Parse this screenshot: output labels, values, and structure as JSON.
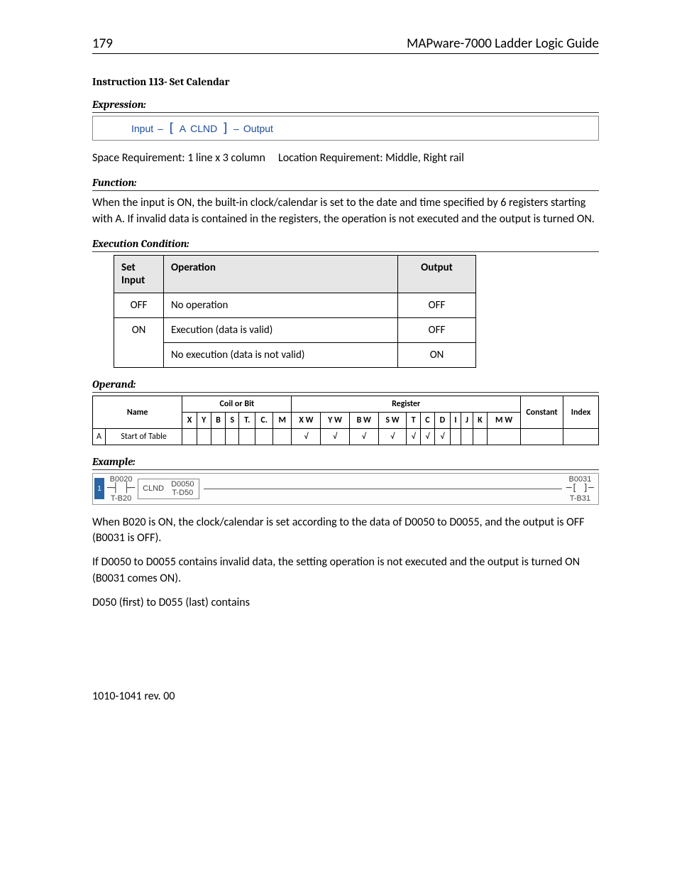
{
  "header": {
    "page_num": "179",
    "doc_title": "MAPware-7000 Ladder Logic Guide"
  },
  "title": "Instruction 113- Set Calendar",
  "expression": {
    "label": "Expression:",
    "input": "Input",
    "a": "A",
    "mnemonic": "CLND",
    "output": "Output"
  },
  "space_req": "Space Requirement: 1 line x 3 column",
  "loc_req": "Location Requirement: Middle, Right rail",
  "function": {
    "label": "Function:",
    "text": "When the input is ON, the built-in clock/calendar is set to the date and time specified by 6 registers starting with A. If invalid data is contained in the registers, the operation is not executed and the output is turned ON."
  },
  "exec": {
    "label": "Execution Condition:",
    "headers": {
      "set": "Set Input",
      "op": "Operation",
      "out": "Output"
    },
    "rows": [
      {
        "set": "OFF",
        "op": "No operation",
        "out": "OFF"
      },
      {
        "set": "ON",
        "op": "Execution (data is valid)",
        "out": "OFF"
      },
      {
        "set": "",
        "op": "No execution (data is not valid)",
        "out": "ON"
      }
    ]
  },
  "operand": {
    "label": "Operand:",
    "group_headers": {
      "coil": "Coil or Bit",
      "reg": "Register",
      "const": "Constant",
      "index": "Index"
    },
    "name_header": "Name",
    "cols_coil": [
      "X",
      "Y",
      "B",
      "S",
      "T.",
      "C.",
      "M"
    ],
    "cols_reg": [
      "X W",
      "Y W",
      "B W",
      "S W",
      "T",
      "C",
      "D",
      "I",
      "J",
      "K",
      "M W"
    ],
    "row": {
      "idx": "A",
      "name": "Start of Table",
      "marks": {
        "XW": "√",
        "YW": "√",
        "BW": "√",
        "SW": "√",
        "T": "√",
        "C": "√",
        "D": "√"
      }
    }
  },
  "example": {
    "label": "Example:",
    "rung": "1",
    "contact_addr": "B0020",
    "contact_tag": "T-B20",
    "instr": "CLND",
    "op_addr": "D0050",
    "op_tag": "T-D50",
    "coil_addr": "B0031",
    "coil_tag": "T-B31"
  },
  "body": {
    "p1": "When B020 is ON, the clock/calendar is set according to the data of D0050 to D0055, and the output is OFF (B0031 is OFF).",
    "p2": "If D0050 to D0055 contains invalid data, the setting operation is not executed and the output is turned ON (B0031 comes ON).",
    "p3": "D050 (first) to D055 (last) contains"
  },
  "footer": "1010-1041 rev. 00"
}
